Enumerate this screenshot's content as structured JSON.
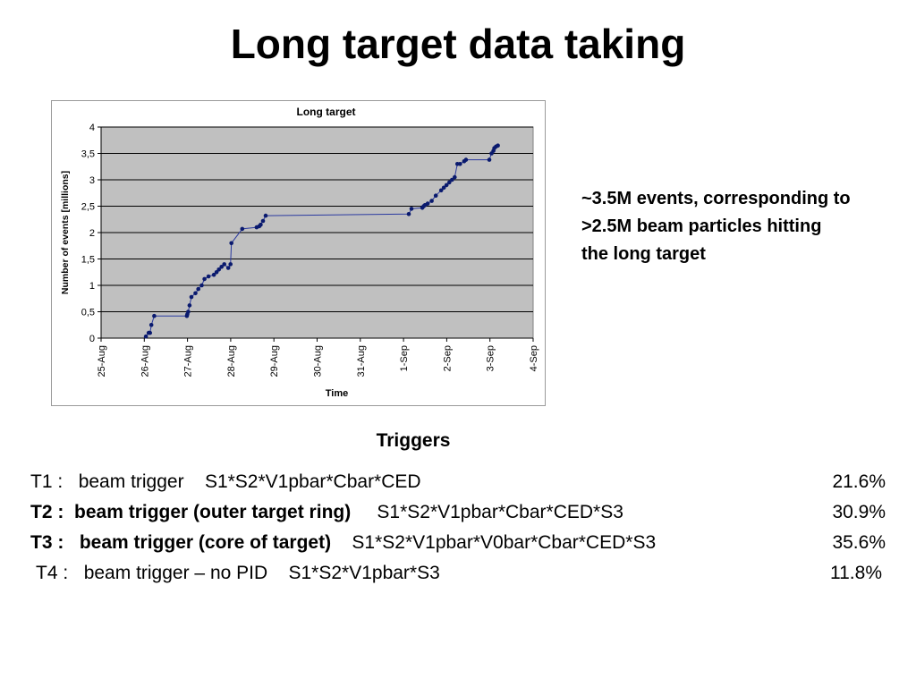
{
  "slide": {
    "title": "Long target data taking",
    "note_lines": [
      "~3.5M events, corresponding to",
      ">2.5M beam particles hitting",
      "the long target"
    ],
    "triggers_title": "Triggers",
    "triggers": [
      {
        "id": "T1 :",
        "desc": "beam trigger",
        "logic": "S1*S2*V1pbar*Cbar*CED",
        "pct": "21.6%",
        "bold": false
      },
      {
        "id": "T2 :",
        "desc": "beam trigger (outer target ring)",
        "logic": "S1*S2*V1pbar*Cbar*CED*S3",
        "pct": "30.9%",
        "bold": true
      },
      {
        "id": "T3 :",
        "desc": "beam trigger (core of target)",
        "logic": "S1*S2*V1pbar*V0bar*Cbar*CED*S3",
        "pct": "35.6%",
        "bold": true
      },
      {
        "id": "T4 :",
        "desc": "beam trigger – no PID",
        "logic": "S1*S2*V1pbar*S3",
        "pct": "11.8%",
        "bold": false
      }
    ]
  },
  "chart_data": {
    "type": "line",
    "title": "Long target",
    "xlabel": "Time",
    "ylabel": "Number of events [millions]",
    "x_ticks": [
      "25-Aug",
      "26-Aug",
      "27-Aug",
      "28-Aug",
      "29-Aug",
      "30-Aug",
      "31-Aug",
      "1-Sep",
      "2-Sep",
      "3-Sep",
      "4-Sep"
    ],
    "y_ticks": [
      "0",
      "0,5",
      "1",
      "1,5",
      "2",
      "2,5",
      "3",
      "3,5",
      "4"
    ],
    "xlim": [
      "25-Aug 00:00",
      "4-Sep 00:00"
    ],
    "ylim": [
      0,
      4
    ],
    "grid": "horizontal",
    "plot_background": "#c0c0c0",
    "line_color": "#2b3aa0",
    "marker_color": "#0a1a6e",
    "series": [
      {
        "x": [
          "26-Aug 00:55",
          "26-Aug 02:25",
          "26-Aug 03:10",
          "26-Aug 03:55",
          "26-Aug 05:30",
          "26-Aug 23:40",
          "26-Aug 23:55",
          "27-Aug 00:25",
          "27-Aug 01:10",
          "27-Aug 02:10",
          "27-Aug 04:25",
          "27-Aug 06:00",
          "27-Aug 07:55",
          "27-Aug 09:25",
          "27-Aug 11:40",
          "27-Aug 14:40",
          "27-Aug 16:10",
          "27-Aug 17:25",
          "27-Aug 18:55",
          "27-Aug 20:25",
          "27-Aug 22:40",
          "27-Aug 23:55",
          "28-Aug 00:25",
          "28-Aug 06:25",
          "28-Aug 14:25",
          "28-Aug 15:55",
          "28-Aug 16:40",
          "28-Aug 17:55",
          "28-Aug 19:25",
          "1-Sep 02:55",
          "1-Sep 04:25",
          "1-Sep 10:25",
          "1-Sep 11:10",
          "1-Sep 11:55",
          "1-Sep 13:25",
          "1-Sep 15:40",
          "1-Sep 17:55",
          "1-Sep 20:55",
          "1-Sep 22:25",
          "1-Sep 23:55",
          "2-Sep 01:25",
          "2-Sep 02:55",
          "2-Sep 04:25",
          "2-Sep 05:55",
          "2-Sep 07:25",
          "2-Sep 09:40",
          "2-Sep 10:40",
          "2-Sep 23:40",
          "3-Sep 00:55",
          "3-Sep 01:55",
          "3-Sep 02:25",
          "3-Sep 03:25",
          "3-Sep 04:25"
        ],
        "values": [
          0.03,
          0.1,
          0.1,
          0.25,
          0.42,
          0.42,
          0.45,
          0.5,
          0.62,
          0.78,
          0.85,
          0.93,
          1.0,
          1.12,
          1.17,
          1.2,
          1.25,
          1.3,
          1.35,
          1.4,
          1.33,
          1.4,
          1.8,
          2.07,
          2.1,
          2.12,
          2.15,
          2.22,
          2.32,
          2.35,
          2.45,
          2.47,
          2.5,
          2.52,
          2.55,
          2.6,
          2.7,
          2.8,
          2.85,
          2.9,
          2.95,
          3.0,
          3.05,
          3.3,
          3.3,
          3.35,
          3.38,
          3.38,
          3.5,
          3.55,
          3.6,
          3.63,
          3.65
        ]
      }
    ]
  }
}
